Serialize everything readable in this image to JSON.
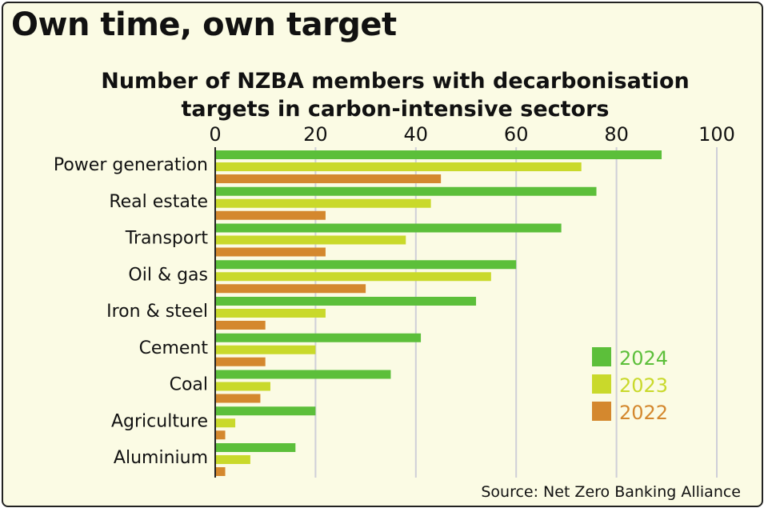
{
  "headline": "Own time, own target",
  "source": "Source: Net Zero Banking Alliance",
  "chart_data": {
    "type": "bar",
    "orientation": "horizontal",
    "title": "Number of NZBA members with decarbonisation targets in carbon-intensive sectors",
    "title_lines": [
      "Number of NZBA members with decarbonisation",
      "targets in carbon-intensive sectors"
    ],
    "categories": [
      "Power generation",
      "Real estate",
      "Transport",
      "Oil & gas",
      "Iron & steel",
      "Cement",
      "Coal",
      "Agriculture",
      "Aluminium"
    ],
    "series": [
      {
        "name": "2024",
        "color": "#5cbf3a",
        "values": [
          89,
          76,
          69,
          60,
          52,
          41,
          35,
          20,
          16
        ]
      },
      {
        "name": "2023",
        "color": "#c9d92b",
        "values": [
          73,
          43,
          38,
          55,
          22,
          20,
          11,
          4,
          7
        ]
      },
      {
        "name": "2022",
        "color": "#d4882e",
        "values": [
          45,
          22,
          22,
          30,
          10,
          10,
          9,
          2,
          2
        ]
      }
    ],
    "xlim": [
      0,
      100
    ],
    "xticks": [
      0,
      20,
      40,
      60,
      80,
      100
    ],
    "grid": true,
    "legend_position": "right"
  }
}
